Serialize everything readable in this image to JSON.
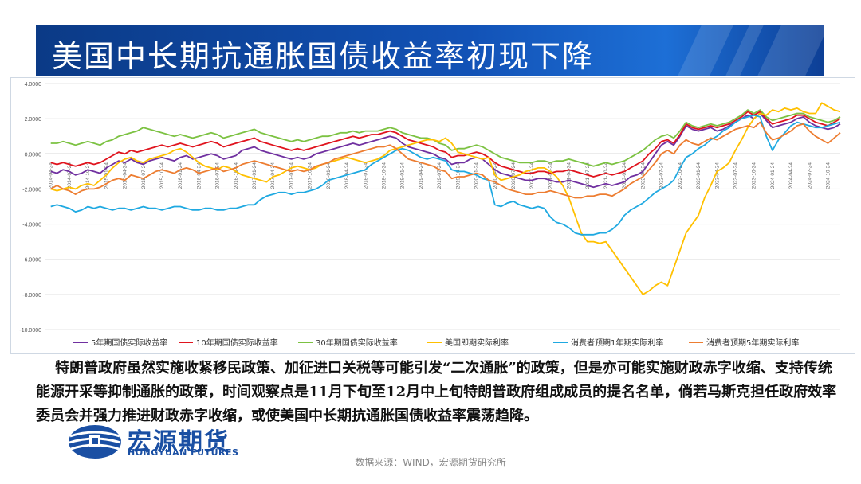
{
  "header": {
    "title": "美国中长期抗通胀国债收益率初现下降"
  },
  "chart_data": {
    "type": "line",
    "ylim": [
      -10,
      4
    ],
    "y_ticks": [
      "4.0000",
      "2.0000",
      "0.0000",
      "-2.0000",
      "-4.0000",
      "-6.0000",
      "-8.0000",
      "-10.0000"
    ],
    "x_ticks": [
      "2014-04-24",
      "2014-07-24",
      "2014-10-24",
      "2015-01-24",
      "2015-04-24",
      "2015-07-24",
      "2015-10-24",
      "2016-01-24",
      "2016-04-24",
      "2016-07-24",
      "2016-10-24",
      "2017-01-24",
      "2017-04-24",
      "2017-07-24",
      "2017-10-24",
      "2018-01-24",
      "2018-04-24",
      "2018-07-24",
      "2018-10-24",
      "2019-01-24",
      "2019-04-24",
      "2019-07-24",
      "2019-10-24",
      "2020-01-24",
      "2020-04-24",
      "2020-07-24",
      "2020-10-24",
      "2021-01-24",
      "2021-04-24",
      "2021-07-24",
      "2021-10-24",
      "2022-01-24",
      "2022-04-24",
      "2022-07-24",
      "2022-10-24",
      "2023-01-24",
      "2023-04-24",
      "2023-07-24",
      "2023-10-24",
      "2024-01-24",
      "2024-04-24",
      "2024-07-24",
      "2024-10-24"
    ],
    "x_tick_positions": [
      0,
      3,
      6,
      9,
      12,
      15,
      18,
      21,
      24,
      27,
      30,
      33,
      36,
      39,
      42,
      45,
      48,
      51,
      54,
      57,
      60,
      63,
      66,
      69,
      72,
      75,
      78,
      81,
      84,
      87,
      90,
      93,
      96,
      99,
      102,
      105,
      108,
      111,
      114,
      117,
      120,
      123,
      126
    ],
    "x_range": [
      -1,
      128
    ],
    "months": [
      "2014-03",
      "2014-04",
      "2014-05",
      "2014-06",
      "2014-07",
      "2014-08",
      "2014-09",
      "2014-10",
      "2014-11",
      "2014-12",
      "2015-01",
      "2015-02",
      "2015-03",
      "2015-04",
      "2015-05",
      "2015-06",
      "2015-07",
      "2015-08",
      "2015-09",
      "2015-10",
      "2015-11",
      "2015-12",
      "2016-01",
      "2016-02",
      "2016-03",
      "2016-04",
      "2016-05",
      "2016-06",
      "2016-07",
      "2016-08",
      "2016-09",
      "2016-10",
      "2016-11",
      "2016-12",
      "2017-01",
      "2017-02",
      "2017-03",
      "2017-04",
      "2017-05",
      "2017-06",
      "2017-07",
      "2017-08",
      "2017-09",
      "2017-10",
      "2017-11",
      "2017-12",
      "2018-01",
      "2018-02",
      "2018-03",
      "2018-04",
      "2018-05",
      "2018-06",
      "2018-07",
      "2018-08",
      "2018-09",
      "2018-10",
      "2018-11",
      "2018-12",
      "2019-01",
      "2019-02",
      "2019-03",
      "2019-04",
      "2019-05",
      "2019-06",
      "2019-07",
      "2019-08",
      "2019-09",
      "2019-10",
      "2019-11",
      "2019-12",
      "2020-01",
      "2020-02",
      "2020-03",
      "2020-04",
      "2020-05",
      "2020-06",
      "2020-07",
      "2020-08",
      "2020-09",
      "2020-10",
      "2020-11",
      "2020-12",
      "2021-01",
      "2021-02",
      "2021-03",
      "2021-04",
      "2021-05",
      "2021-06",
      "2021-07",
      "2021-08",
      "2021-09",
      "2021-10",
      "2021-11",
      "2021-12",
      "2022-01",
      "2022-02",
      "2022-03",
      "2022-04",
      "2022-05",
      "2022-06",
      "2022-07",
      "2022-08",
      "2022-09",
      "2022-10",
      "2022-11",
      "2022-12",
      "2023-01",
      "2023-02",
      "2023-03",
      "2023-04",
      "2023-05",
      "2023-06",
      "2023-07",
      "2023-08",
      "2023-09",
      "2023-10",
      "2023-11",
      "2023-12",
      "2024-01",
      "2024-02",
      "2024-03",
      "2024-04",
      "2024-05",
      "2024-06",
      "2024-07",
      "2024-08",
      "2024-09",
      "2024-10",
      "2024-11"
    ],
    "series": [
      {
        "name": "5年期国债实际收益率",
        "color": "#7030a0",
        "values": [
          -1.0,
          -1.1,
          -0.9,
          -1.0,
          -1.2,
          -1.1,
          -0.9,
          -1.0,
          -1.1,
          -0.8,
          -0.6,
          -0.4,
          -0.5,
          -0.3,
          -0.5,
          -0.6,
          -0.4,
          -0.3,
          -0.2,
          -0.3,
          -0.4,
          -0.2,
          -0.1,
          -0.3,
          -0.2,
          -0.1,
          0.0,
          -0.1,
          -0.3,
          -0.2,
          -0.1,
          0.2,
          0.3,
          0.4,
          0.2,
          0.1,
          0.0,
          -0.1,
          -0.2,
          -0.3,
          -0.2,
          -0.3,
          -0.2,
          0.0,
          0.1,
          0.2,
          0.3,
          0.4,
          0.5,
          0.6,
          0.5,
          0.6,
          0.7,
          0.8,
          0.9,
          1.0,
          0.9,
          0.6,
          0.4,
          0.3,
          0.2,
          0.1,
          0.0,
          -0.2,
          -0.3,
          -0.6,
          -0.5,
          -0.5,
          -0.3,
          -0.2,
          -0.3,
          -0.6,
          -0.9,
          -1.1,
          -1.2,
          -1.3,
          -1.4,
          -1.5,
          -1.5,
          -1.4,
          -1.4,
          -1.5,
          -1.6,
          -1.6,
          -1.5,
          -1.6,
          -1.7,
          -1.8,
          -1.9,
          -1.8,
          -1.7,
          -1.8,
          -1.7,
          -1.6,
          -1.3,
          -1.2,
          -1.0,
          -0.5,
          0.0,
          0.5,
          0.7,
          0.5,
          1.0,
          1.6,
          1.4,
          1.3,
          1.4,
          1.5,
          1.3,
          1.4,
          1.6,
          1.8,
          2.0,
          2.2,
          2.0,
          2.3,
          1.9,
          1.5,
          1.6,
          1.7,
          1.8,
          2.0,
          2.1,
          1.8,
          1.6,
          1.5,
          1.4,
          1.5,
          1.7
        ]
      },
      {
        "name": "10年期国债实际收益率",
        "color": "#e0141e",
        "values": [
          -0.5,
          -0.6,
          -0.5,
          -0.6,
          -0.7,
          -0.6,
          -0.5,
          -0.6,
          -0.5,
          -0.3,
          -0.1,
          0.1,
          0.0,
          0.2,
          0.1,
          0.2,
          0.3,
          0.4,
          0.5,
          0.4,
          0.5,
          0.6,
          0.5,
          0.4,
          0.5,
          0.6,
          0.7,
          0.6,
          0.4,
          0.5,
          0.6,
          0.7,
          0.8,
          0.9,
          0.7,
          0.6,
          0.5,
          0.4,
          0.3,
          0.2,
          0.3,
          0.2,
          0.3,
          0.4,
          0.5,
          0.6,
          0.7,
          0.8,
          0.9,
          1.0,
          0.9,
          1.0,
          1.1,
          1.1,
          1.2,
          1.3,
          1.2,
          1.0,
          0.8,
          0.7,
          0.6,
          0.5,
          0.4,
          0.2,
          0.1,
          -0.2,
          -0.1,
          -0.1,
          0.0,
          0.1,
          0.0,
          -0.2,
          -0.5,
          -0.7,
          -0.8,
          -0.9,
          -1.0,
          -1.1,
          -1.1,
          -1.0,
          -1.0,
          -1.1,
          -1.0,
          -1.0,
          -0.9,
          -1.0,
          -1.1,
          -1.2,
          -1.3,
          -1.2,
          -1.1,
          -1.2,
          -1.1,
          -1.0,
          -0.8,
          -0.6,
          -0.4,
          0.0,
          0.3,
          0.7,
          0.8,
          0.6,
          1.1,
          1.7,
          1.5,
          1.4,
          1.5,
          1.6,
          1.5,
          1.6,
          1.7,
          1.9,
          2.1,
          2.4,
          2.2,
          2.4,
          2.0,
          1.7,
          1.8,
          1.9,
          2.0,
          2.2,
          2.2,
          2.0,
          1.8,
          1.7,
          1.6,
          1.8,
          2.0
        ]
      },
      {
        "name": "30年期国债实际收益率",
        "color": "#7cc242",
        "values": [
          0.6,
          0.6,
          0.7,
          0.6,
          0.5,
          0.6,
          0.7,
          0.6,
          0.5,
          0.7,
          0.8,
          1.0,
          1.1,
          1.2,
          1.3,
          1.5,
          1.4,
          1.3,
          1.2,
          1.1,
          1.0,
          1.1,
          1.0,
          0.9,
          1.0,
          1.1,
          1.2,
          1.1,
          0.9,
          1.0,
          1.1,
          1.2,
          1.3,
          1.4,
          1.2,
          1.1,
          1.0,
          0.9,
          0.8,
          0.7,
          0.8,
          0.7,
          0.8,
          0.9,
          1.0,
          1.0,
          1.1,
          1.2,
          1.2,
          1.3,
          1.2,
          1.3,
          1.3,
          1.3,
          1.4,
          1.5,
          1.4,
          1.2,
          1.1,
          1.0,
          0.9,
          0.9,
          0.8,
          0.6,
          0.5,
          0.2,
          0.3,
          0.3,
          0.4,
          0.5,
          0.4,
          0.2,
          0.0,
          -0.2,
          -0.3,
          -0.4,
          -0.5,
          -0.5,
          -0.5,
          -0.4,
          -0.4,
          -0.5,
          -0.4,
          -0.4,
          -0.3,
          -0.4,
          -0.5,
          -0.6,
          -0.7,
          -0.6,
          -0.5,
          -0.6,
          -0.5,
          -0.4,
          -0.2,
          0.0,
          0.2,
          0.5,
          0.8,
          1.0,
          1.1,
          0.9,
          1.3,
          1.8,
          1.6,
          1.5,
          1.6,
          1.7,
          1.6,
          1.7,
          1.8,
          2.0,
          2.2,
          2.5,
          2.3,
          2.5,
          2.1,
          1.9,
          2.0,
          2.1,
          2.2,
          2.3,
          2.3,
          2.1,
          2.0,
          1.9,
          1.8,
          1.9,
          2.1
        ]
      },
      {
        "name": "美国即期实际利率",
        "color": "#ffc000",
        "values": [
          -2.0,
          -2.1,
          -2.0,
          -1.9,
          -2.0,
          -1.8,
          -1.7,
          -1.8,
          -1.5,
          -1.2,
          -0.8,
          -0.5,
          -0.3,
          -0.2,
          -0.4,
          -0.5,
          -0.3,
          -0.2,
          -0.1,
          0.0,
          0.2,
          0.3,
          0.1,
          -0.2,
          -0.5,
          -0.7,
          -0.8,
          -0.9,
          -0.7,
          -0.8,
          -1.0,
          -1.2,
          -1.3,
          -1.4,
          -1.5,
          -1.6,
          -1.3,
          -1.2,
          -1.0,
          -0.8,
          -0.7,
          -0.8,
          -0.9,
          -0.8,
          -0.6,
          -0.5,
          -0.4,
          -0.3,
          -0.2,
          -0.3,
          -0.4,
          -0.5,
          -0.4,
          -0.3,
          -0.1,
          0.2,
          0.3,
          0.4,
          0.5,
          0.6,
          0.7,
          0.8,
          0.8,
          0.7,
          0.9,
          0.6,
          0.1,
          0.0,
          -0.1,
          -0.2,
          -0.3,
          -0.2,
          -1.2,
          -1.5,
          -1.4,
          -1.3,
          -1.2,
          -1.0,
          -0.9,
          -0.8,
          -0.8,
          -1.0,
          -1.3,
          -1.8,
          -2.5,
          -3.5,
          -4.5,
          -5.0,
          -5.0,
          -5.1,
          -5.0,
          -5.5,
          -6.0,
          -6.5,
          -7.0,
          -7.5,
          -8.0,
          -7.8,
          -7.5,
          -7.3,
          -7.5,
          -6.5,
          -5.5,
          -4.5,
          -4.0,
          -3.5,
          -2.5,
          -1.8,
          -1.0,
          -0.8,
          -0.5,
          0.2,
          0.8,
          1.5,
          2.0,
          2.3,
          2.2,
          2.5,
          2.4,
          2.6,
          2.5,
          2.6,
          2.4,
          2.3,
          2.3,
          2.9,
          2.7,
          2.5,
          2.4
        ]
      },
      {
        "name": "消费者预期1年期实际利率",
        "color": "#1fa9e1",
        "values": [
          -3.0,
          -2.9,
          -3.0,
          -3.1,
          -3.3,
          -3.2,
          -3.0,
          -3.1,
          -3.0,
          -3.1,
          -3.2,
          -3.1,
          -3.1,
          -3.2,
          -3.1,
          -3.0,
          -3.1,
          -3.1,
          -3.2,
          -3.1,
          -3.0,
          -3.0,
          -3.1,
          -3.2,
          -3.2,
          -3.1,
          -3.1,
          -3.2,
          -3.2,
          -3.1,
          -3.1,
          -3.0,
          -2.9,
          -2.9,
          -2.6,
          -2.4,
          -2.3,
          -2.2,
          -2.2,
          -2.3,
          -2.2,
          -2.2,
          -2.1,
          -2.0,
          -1.8,
          -1.5,
          -1.4,
          -1.3,
          -1.2,
          -1.1,
          -1.0,
          -0.9,
          -0.6,
          -0.4,
          -0.2,
          0.0,
          0.2,
          0.3,
          0.2,
          0.0,
          -0.2,
          -0.3,
          -0.2,
          -0.3,
          -0.4,
          -0.9,
          -1.0,
          -1.0,
          -1.1,
          -1.2,
          -1.4,
          -1.5,
          -2.9,
          -3.0,
          -2.8,
          -2.7,
          -2.9,
          -3.0,
          -3.1,
          -3.0,
          -3.1,
          -3.6,
          -3.9,
          -4.0,
          -4.2,
          -4.5,
          -4.6,
          -4.6,
          -4.6,
          -4.5,
          -4.5,
          -4.3,
          -4.0,
          -3.5,
          -3.2,
          -3.0,
          -2.8,
          -2.5,
          -2.2,
          -2.0,
          -1.8,
          -1.5,
          -0.8,
          -0.2,
          0.0,
          0.3,
          0.5,
          0.8,
          1.0,
          1.3,
          1.5,
          1.8,
          2.0,
          2.1,
          2.2,
          2.1,
          1.0,
          0.2,
          0.8,
          1.2,
          1.6,
          1.8,
          1.7,
          1.6,
          1.5,
          1.5,
          1.6,
          1.7,
          1.8
        ]
      },
      {
        "name": "消费者预期5年期实际利率",
        "color": "#ed7d31",
        "values": [
          -2.0,
          -1.8,
          -2.0,
          -2.1,
          -2.3,
          -2.1,
          -2.0,
          -2.0,
          -1.9,
          -1.7,
          -1.5,
          -1.4,
          -1.5,
          -1.2,
          -1.3,
          -1.4,
          -1.2,
          -1.0,
          -0.9,
          -1.0,
          -1.1,
          -0.9,
          -0.8,
          -0.9,
          -1.1,
          -1.0,
          -0.9,
          -0.8,
          -1.0,
          -0.9,
          -0.8,
          -0.6,
          -0.5,
          -0.4,
          -0.5,
          -0.6,
          -0.7,
          -0.8,
          -0.9,
          -1.0,
          -0.9,
          -1.0,
          -0.9,
          -0.7,
          -0.6,
          -0.5,
          -0.3,
          -0.2,
          -0.1,
          0.0,
          0.1,
          0.2,
          0.3,
          0.4,
          0.4,
          0.5,
          0.3,
          0.0,
          -0.3,
          -0.4,
          -0.5,
          -0.6,
          -0.7,
          -0.9,
          -1.0,
          -1.4,
          -1.3,
          -1.3,
          -1.2,
          -1.1,
          -1.2,
          -1.5,
          -1.6,
          -1.8,
          -2.0,
          -2.1,
          -2.2,
          -2.3,
          -2.3,
          -2.2,
          -2.2,
          -2.1,
          -2.2,
          -2.3,
          -2.4,
          -2.5,
          -2.5,
          -2.4,
          -2.4,
          -2.3,
          -2.3,
          -2.4,
          -2.2,
          -2.0,
          -1.7,
          -1.5,
          -1.3,
          -0.9,
          -0.5,
          0.0,
          0.2,
          0.0,
          0.5,
          0.8,
          0.6,
          0.5,
          0.7,
          0.9,
          0.8,
          1.0,
          1.2,
          1.4,
          1.5,
          1.6,
          1.5,
          1.8,
          1.2,
          0.8,
          0.9,
          1.1,
          1.3,
          1.6,
          1.7,
          1.3,
          1.0,
          0.8,
          0.6,
          0.9,
          1.2
        ]
      }
    ]
  },
  "body": {
    "paragraph": "特朗普政府虽然实施收紧移民政策、加征进口关税等可能引发“二次通胀”的政策，但是亦可能实施财政赤字收缩、支持传统能源开采等抑制通胀的政策，时间观察点是11月下旬至12月中上旬特朗普政府组成成员的提名名单，倘若马斯克担任政府效率委员会并强力推进财政赤字收缩，或使美国中长期抗通胀国债收益率震荡趋降。"
  },
  "logo": {
    "cn": "宏源期货",
    "en": "HONGYUAN FUTURES"
  },
  "footer": {
    "source": "数据来源：WIND，宏源期货研究所"
  }
}
